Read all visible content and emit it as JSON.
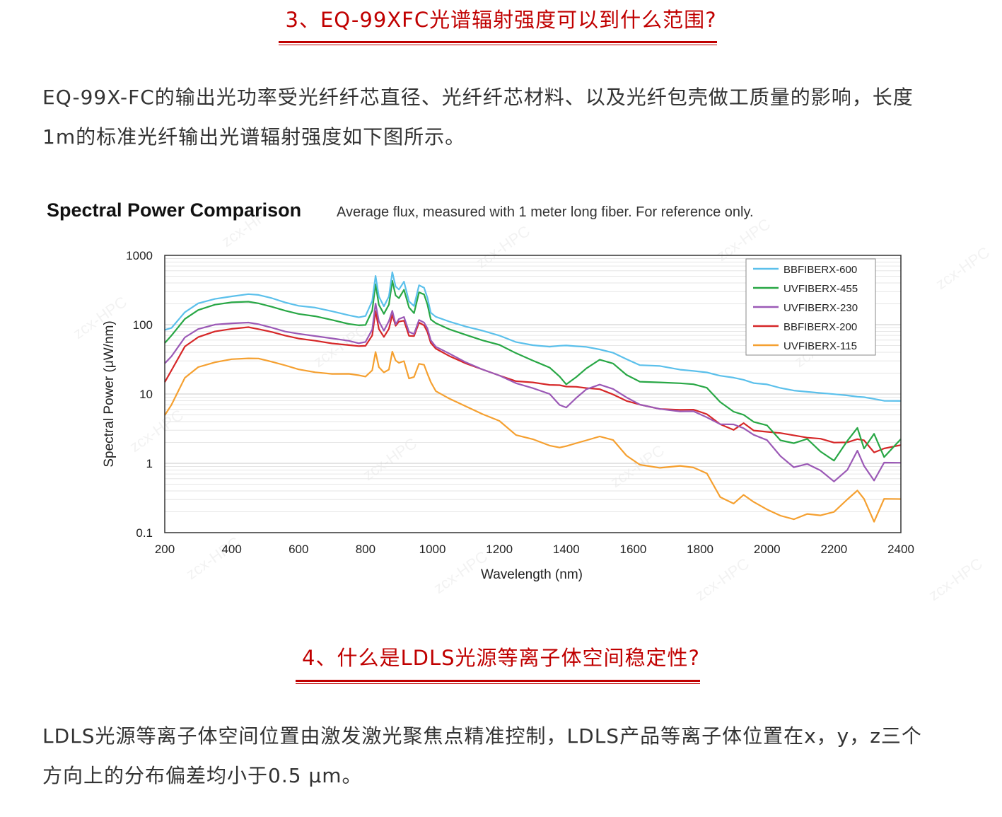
{
  "section3": {
    "heading": "3、EQ-99XFC光谱辐射强度可以到什么范围?",
    "para_line1": "EQ-99X-FC的输出光功率受光纤纤芯直径、光纤纤芯材料、以及光纤包壳做工质量的影响，长度",
    "para_line2": "1m的标准光纤输出光谱辐射强度如下图所示。"
  },
  "section4": {
    "heading": "4、什么是LDLS光源等离子体空间稳定性?",
    "para_line1": "LDLS光源等离子体空间位置由激发激光聚焦点精准控制，LDLS产品等离子体位置在x，y，z三个",
    "para_line2": "方向上的分布偏差均小于0.5 μm。"
  },
  "accent_color": "#c00000",
  "chart_data": {
    "type": "line",
    "title": "Spectral Power Comparison",
    "subtitle": "Average flux, measured with 1 meter long fiber. For reference only.",
    "xlabel": "Wavelength (nm)",
    "ylabel": "Spectral Power (μW/nm)",
    "yscale": "log",
    "xlim": [
      200,
      2400
    ],
    "ylim": [
      0.1,
      1000
    ],
    "xticks": [
      "200",
      "400",
      "600",
      "800",
      "1000",
      "1200",
      "1400",
      "1600",
      "1800",
      "2000",
      "2200",
      "2400"
    ],
    "yticks": [
      "1000",
      "100",
      "10",
      "1",
      "0.1"
    ],
    "legend_position": "top-right",
    "watermark": "zcx-HPC",
    "x": [
      200,
      220,
      260,
      300,
      350,
      400,
      450,
      480,
      520,
      560,
      600,
      650,
      700,
      750,
      780,
      800,
      820,
      830,
      840,
      855,
      870,
      880,
      890,
      900,
      915,
      930,
      945,
      960,
      975,
      985,
      995,
      1010,
      1050,
      1100,
      1150,
      1200,
      1250,
      1300,
      1350,
      1380,
      1400,
      1430,
      1460,
      1500,
      1540,
      1580,
      1620,
      1680,
      1740,
      1780,
      1820,
      1860,
      1900,
      1930,
      1960,
      2000,
      2040,
      2080,
      2120,
      2160,
      2200,
      2240,
      2270,
      2290,
      2320,
      2350,
      2400
    ],
    "series": [
      {
        "name": "BBFIBERX-600",
        "color": "#5bc0eb",
        "values": [
          85,
          90,
          150,
          200,
          230,
          250,
          270,
          265,
          240,
          210,
          190,
          180,
          160,
          140,
          130,
          135,
          220,
          500,
          250,
          180,
          250,
          560,
          350,
          320,
          420,
          220,
          190,
          380,
          350,
          250,
          150,
          130,
          110,
          92,
          80,
          68,
          55,
          50,
          48,
          50,
          51,
          50,
          49,
          45,
          40,
          32,
          26,
          25,
          22,
          21,
          20,
          18,
          17,
          16,
          14.5,
          14,
          12.5,
          11.5,
          11,
          10.5,
          10,
          9.5,
          9,
          8.8,
          8.3,
          7.8,
          7.8
        ]
      },
      {
        "name": "UVFIBERX-455",
        "color": "#28a745",
        "values": [
          55,
          70,
          120,
          160,
          190,
          205,
          210,
          200,
          180,
          160,
          145,
          135,
          120,
          105,
          100,
          100,
          160,
          380,
          190,
          140,
          190,
          420,
          260,
          240,
          320,
          180,
          150,
          300,
          280,
          200,
          120,
          105,
          85,
          70,
          58,
          50,
          38,
          30,
          24,
          18,
          14,
          18,
          24,
          32,
          28,
          19,
          15,
          14.5,
          14,
          13.5,
          12,
          7.5,
          5.5,
          5,
          4,
          3.6,
          2.2,
          2,
          2.3,
          1.5,
          1.1,
          2.1,
          3.2,
          1.6,
          2.6,
          1.2,
          2.2
        ]
      },
      {
        "name": "UVFIBERX-230",
        "color": "#9b59b6",
        "values": [
          28,
          35,
          65,
          85,
          98,
          102,
          105,
          100,
          90,
          80,
          75,
          70,
          65,
          60,
          55,
          57,
          85,
          200,
          110,
          80,
          110,
          155,
          100,
          120,
          130,
          80,
          75,
          120,
          110,
          90,
          60,
          48,
          38,
          28,
          22,
          18,
          14,
          12,
          10,
          7,
          6.5,
          9,
          12,
          14,
          12,
          9,
          7,
          6,
          5.5,
          5.5,
          4.5,
          3.6,
          3.6,
          3.2,
          2.6,
          2.2,
          1.3,
          0.9,
          1,
          0.8,
          0.55,
          0.8,
          1.5,
          0.9,
          0.55,
          1,
          1
        ]
      },
      {
        "name": "BBFIBERX-200",
        "color": "#d62728",
        "values": [
          15,
          22,
          48,
          65,
          78,
          85,
          90,
          85,
          78,
          70,
          64,
          60,
          55,
          52,
          50,
          50,
          70,
          155,
          85,
          65,
          85,
          135,
          95,
          110,
          115,
          70,
          70,
          110,
          100,
          80,
          55,
          45,
          35,
          27,
          22,
          18,
          15,
          14.5,
          13.5,
          13.5,
          13,
          13,
          12.5,
          12,
          10,
          8,
          7,
          6,
          5.8,
          5.8,
          5,
          3.6,
          3,
          3.8,
          3,
          2.9,
          2.8,
          2.6,
          2.4,
          2.3,
          2,
          2,
          2.2,
          2.1,
          1.4,
          1.6,
          1.8
        ]
      },
      {
        "name": "UVFIBERX-115",
        "color": "#f5a030",
        "values": [
          5,
          7,
          17,
          24,
          28,
          31,
          32,
          32,
          29,
          26,
          23,
          21,
          20,
          20,
          19,
          18,
          22,
          40,
          24,
          20,
          22,
          40,
          30,
          28,
          30,
          17,
          18,
          28,
          27,
          20,
          15,
          11,
          8.5,
          6.5,
          5,
          4,
          2.5,
          2.2,
          1.8,
          1.7,
          1.8,
          2,
          2.2,
          2.5,
          2.2,
          1.3,
          0.95,
          0.85,
          0.9,
          0.85,
          0.7,
          0.32,
          0.26,
          0.35,
          0.28,
          0.22,
          0.18,
          0.16,
          0.19,
          0.18,
          0.2,
          0.3,
          0.4,
          0.3,
          0.14,
          0.3,
          0.3
        ]
      }
    ]
  }
}
